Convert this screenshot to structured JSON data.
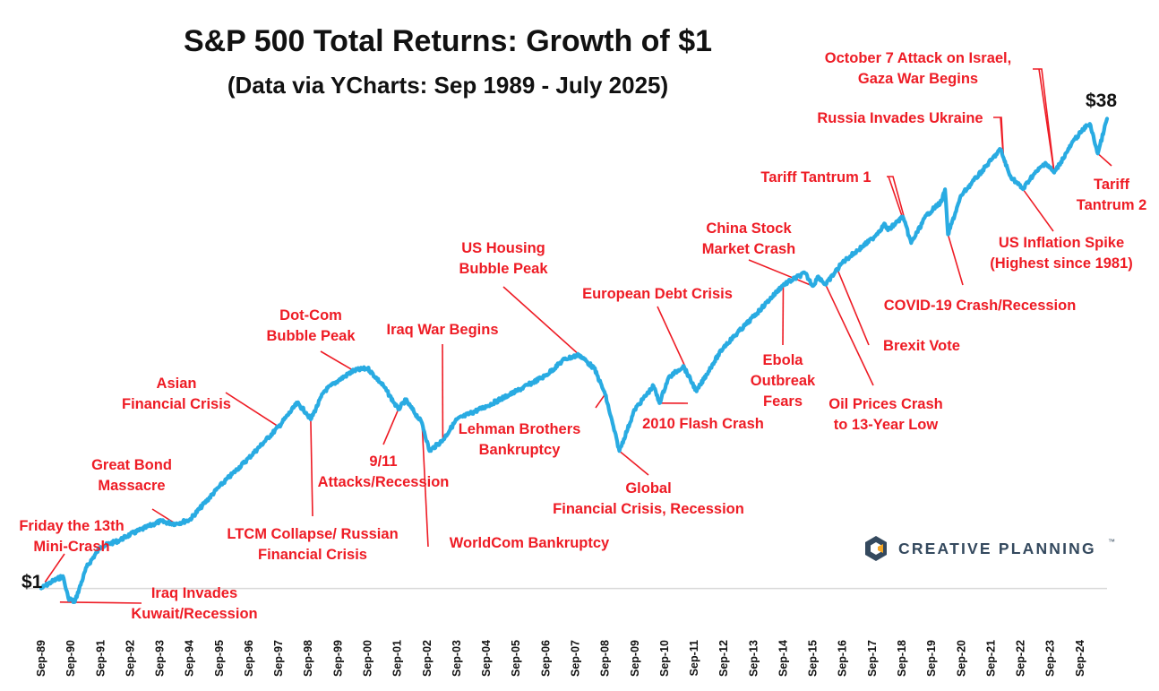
{
  "chart_data": {
    "type": "line",
    "title": "S&P 500 Total Returns: Growth of $1",
    "subtitle": "(Data via YCharts: Sep 1989 - July 2025)",
    "start_label": "$1",
    "end_label": "$38",
    "brand": "CREATIVE PLANNING",
    "brand_mark": "™",
    "line_color": "#29abe2",
    "annotation_color": "#ee1c25",
    "baseline_color": "#d9d9d9",
    "x_ticks": [
      "Sep-89",
      "Sep-90",
      "Sep-91",
      "Sep-92",
      "Sep-93",
      "Sep-94",
      "Sep-95",
      "Sep-96",
      "Sep-97",
      "Sep-98",
      "Sep-99",
      "Sep-00",
      "Sep-01",
      "Sep-02",
      "Sep-03",
      "Sep-04",
      "Sep-05",
      "Sep-06",
      "Sep-07",
      "Sep-08",
      "Sep-09",
      "Sep-10",
      "Sep-11",
      "Sep-12",
      "Sep-13",
      "Sep-14",
      "Sep-15",
      "Sep-16",
      "Sep-17",
      "Sep-18",
      "Sep-19",
      "Sep-20",
      "Sep-21",
      "Sep-22",
      "Sep-23",
      "Sep-24"
    ],
    "series": [
      {
        "x": [
          1989.67,
          1990.0,
          1990.4,
          1990.58,
          1990.8,
          1991.2,
          1991.67,
          1992.3,
          1992.67,
          1993.67,
          1994.2,
          1994.67,
          1995.67,
          1996.67,
          1997.67,
          1998.3,
          1998.6,
          1998.75,
          1999.2,
          1999.67,
          2000.2,
          2000.67,
          2001.2,
          2001.7,
          2001.95,
          2002.5,
          2002.75,
          2003.2,
          2003.67,
          2004.67,
          2005.67,
          2006.67,
          2007.3,
          2007.8,
          2008.3,
          2008.67,
          2009.15,
          2009.67,
          2010.3,
          2010.5,
          2010.8,
          2011.3,
          2011.75,
          2012.3,
          2012.67,
          2013.67,
          2014.67,
          2015.4,
          2015.67,
          2015.85,
          2016.1,
          2016.67,
          2017.67,
          2018.1,
          2018.2,
          2018.7,
          2018.98,
          2019.5,
          2020.0,
          2020.12,
          2020.22,
          2020.67,
          2021.67,
          2021.99,
          2022.3,
          2022.75,
          2023.0,
          2023.5,
          2023.8,
          2024.5,
          2024.9,
          2025.0,
          2025.27,
          2025.58
        ],
        "y": [
          1.0,
          1.05,
          1.1,
          0.93,
          0.9,
          1.18,
          1.38,
          1.45,
          1.52,
          1.68,
          1.65,
          1.7,
          2.2,
          2.75,
          3.5,
          4.2,
          3.9,
          3.7,
          4.6,
          5.0,
          5.4,
          5.5,
          4.8,
          4.0,
          4.3,
          3.6,
          2.9,
          3.15,
          3.7,
          4.1,
          4.6,
          5.2,
          5.9,
          6.1,
          5.5,
          4.5,
          2.9,
          4.0,
          4.8,
          4.2,
          5.1,
          5.6,
          4.6,
          5.7,
          6.5,
          8.2,
          10.5,
          11.5,
          10.4,
          11.2,
          10.5,
          12.5,
          15.0,
          16.8,
          16.0,
          17.8,
          14.5,
          18.0,
          20.0,
          22.0,
          15.5,
          21.0,
          27.5,
          30.0,
          24.5,
          22.0,
          24.0,
          27.0,
          25.0,
          32.5,
          36.0,
          36.5,
          29.0,
          38.0
        ],
        "values": [
          1.0,
          1.05,
          1.1,
          0.93,
          0.9,
          1.18,
          1.38,
          1.45,
          1.52,
          1.68,
          1.65,
          1.7,
          2.2,
          2.75,
          3.5,
          4.2,
          3.9,
          3.7,
          4.6,
          5.0,
          5.4,
          5.5,
          4.8,
          4.0,
          4.3,
          3.6,
          2.9,
          3.15,
          3.7,
          4.1,
          4.6,
          5.2,
          5.9,
          6.1,
          5.5,
          4.5,
          2.9,
          4.0,
          4.8,
          4.2,
          5.1,
          5.6,
          4.6,
          5.7,
          6.5,
          8.2,
          10.5,
          11.5,
          10.4,
          11.2,
          10.5,
          12.5,
          15.0,
          16.8,
          16.0,
          17.8,
          14.5,
          18.0,
          20.0,
          22.0,
          15.5,
          21.0,
          27.5,
          30.0,
          24.5,
          22.0,
          24.0,
          27.0,
          25.0,
          32.5,
          36.0,
          36.5,
          29.0,
          38.0
        ]
      }
    ],
    "y_scale": "log",
    "xlim": [
      1989.67,
      2025.58
    ],
    "ylim": [
      0.88,
      40
    ],
    "grid": false,
    "annotations": [
      {
        "lines": [
          "Friday the 13th",
          "Mini-Crash"
        ],
        "x": 1989.8,
        "y": 1.05
      },
      {
        "lines": [
          "Iraq Invades",
          "Kuwait/Recession"
        ],
        "x": 1990.3,
        "y": 0.9
      },
      {
        "lines": [
          "Great Bond",
          "Massacre"
        ],
        "x": 1994.2,
        "y": 1.65
      },
      {
        "lines": [
          "Asian",
          "Financial Crisis"
        ],
        "x": 1997.67,
        "y": 3.5
      },
      {
        "lines": [
          "LTCM Collapse/ Russian",
          "Financial Crisis"
        ],
        "x": 1998.75,
        "y": 3.7
      },
      {
        "lines": [
          "Dot-Com",
          "Bubble Peak"
        ],
        "x": 2000.2,
        "y": 5.4
      },
      {
        "lines": [
          "9/11",
          "Attacks/Recession"
        ],
        "x": 2001.7,
        "y": 4.0
      },
      {
        "lines": [
          "Iraq War Begins"
        ],
        "x": 2003.2,
        "y": 3.15
      },
      {
        "lines": [
          "WorldCom Bankruptcy"
        ],
        "x": 2002.5,
        "y": 3.6
      },
      {
        "lines": [
          "US Housing",
          "Bubble Peak"
        ],
        "x": 2007.8,
        "y": 6.1
      },
      {
        "lines": [
          "Lehman Brothers",
          "Bankruptcy"
        ],
        "x": 2008.67,
        "y": 4.5
      },
      {
        "lines": [
          "Global",
          "Financial Crisis, Recession"
        ],
        "x": 2009.15,
        "y": 2.9
      },
      {
        "lines": [
          "European Debt Crisis"
        ],
        "x": 2011.75,
        "y": 4.6
      },
      {
        "lines": [
          "2010 Flash Crash"
        ],
        "x": 2010.5,
        "y": 4.2
      },
      {
        "lines": [
          "China Stock",
          "Market Crash"
        ],
        "x": 2015.67,
        "y": 10.4
      },
      {
        "lines": [
          "Ebola",
          "Outbreak",
          "Fears"
        ],
        "x": 2014.67,
        "y": 10.5
      },
      {
        "lines": [
          "Oil Prices Crash",
          "to 13-Year Low"
        ],
        "x": 2016.1,
        "y": 10.5
      },
      {
        "lines": [
          "Brexit Vote"
        ],
        "x": 2016.5,
        "y": 11.8
      },
      {
        "lines": [
          "Tariff Tantrum 1"
        ],
        "x": 2018.98,
        "y": 14.5
      },
      {
        "lines": [
          "COVID-19 Crash/Recession"
        ],
        "x": 2020.22,
        "y": 15.5
      },
      {
        "lines": [
          "Russia Invades Ukraine"
        ],
        "x": 2022.1,
        "y": 27.0
      },
      {
        "lines": [
          "US Inflation Spike",
          "(Highest since 1981)"
        ],
        "x": 2022.75,
        "y": 22.0
      },
      {
        "lines": [
          "October 7 Attack on Israel,",
          "Gaza War Begins"
        ],
        "x": 2023.8,
        "y": 25.0
      },
      {
        "lines": [
          "Tariff",
          "Tantrum 2"
        ],
        "x": 2025.27,
        "y": 29.0
      }
    ]
  }
}
